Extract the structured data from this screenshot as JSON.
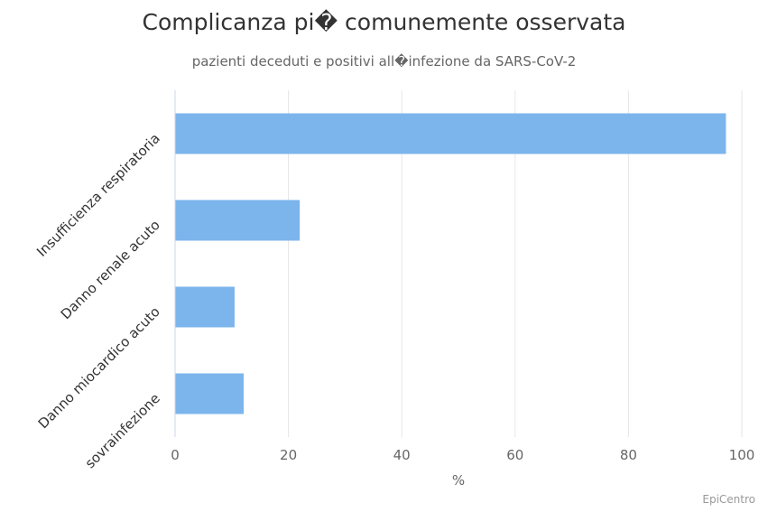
{
  "title": "Complicanza pi� comunemente osservata",
  "subtitle": "pazienti deceduti e positivi all�infezione da SARS-CoV-2",
  "credits": "EpiCentro",
  "colors": {
    "bar": "#7cb5ec",
    "grid": "#e6e6e6",
    "axis_line": "#ccd6eb"
  },
  "chart_data": {
    "type": "bar",
    "orientation": "horizontal",
    "title": "Complicanza pi� comunemente osservata",
    "subtitle": "pazienti deceduti e positivi all�infezione da SARS-CoV-2",
    "categories": [
      "Insufficienza respiratoria",
      "Danno renale acuto",
      "Danno miocardico acuto",
      "sovrainfezione"
    ],
    "values": [
      97.2,
      22.0,
      10.5,
      12.1
    ],
    "value_axis": {
      "label": "%",
      "min": 0,
      "max": 100,
      "ticks": [
        "0",
        "20",
        "40",
        "60",
        "80",
        "100"
      ]
    },
    "grid": true,
    "legend": false
  }
}
